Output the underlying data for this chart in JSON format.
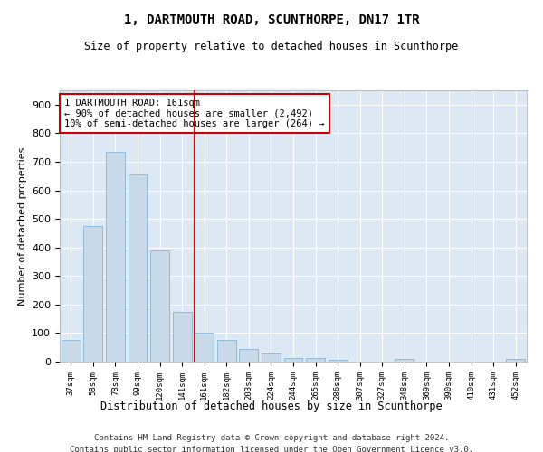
{
  "title": "1, DARTMOUTH ROAD, SCUNTHORPE, DN17 1TR",
  "subtitle": "Size of property relative to detached houses in Scunthorpe",
  "xlabel": "Distribution of detached houses by size in Scunthorpe",
  "ylabel": "Number of detached properties",
  "categories": [
    "37sqm",
    "58sqm",
    "78sqm",
    "99sqm",
    "120sqm",
    "141sqm",
    "161sqm",
    "182sqm",
    "203sqm",
    "224sqm",
    "244sqm",
    "265sqm",
    "286sqm",
    "307sqm",
    "327sqm",
    "348sqm",
    "369sqm",
    "390sqm",
    "410sqm",
    "431sqm",
    "452sqm"
  ],
  "values": [
    75,
    475,
    735,
    655,
    390,
    175,
    100,
    75,
    43,
    30,
    14,
    12,
    7,
    0,
    0,
    8,
    0,
    0,
    0,
    0,
    10
  ],
  "bar_color": "#c8daea",
  "bar_edge_color": "#7aabcc",
  "highlight_index": 6,
  "highlight_line_color": "#cc0000",
  "annotation_text": "1 DARTMOUTH ROAD: 161sqm\n← 90% of detached houses are smaller (2,492)\n10% of semi-detached houses are larger (264) →",
  "annotation_box_color": "#ffffff",
  "annotation_box_edge_color": "#cc0000",
  "bg_color": "#dce8f4",
  "ylim": [
    0,
    950
  ],
  "yticks": [
    0,
    100,
    200,
    300,
    400,
    500,
    600,
    700,
    800,
    900
  ],
  "footer_line1": "Contains HM Land Registry data © Crown copyright and database right 2024.",
  "footer_line2": "Contains public sector information licensed under the Open Government Licence v3.0."
}
